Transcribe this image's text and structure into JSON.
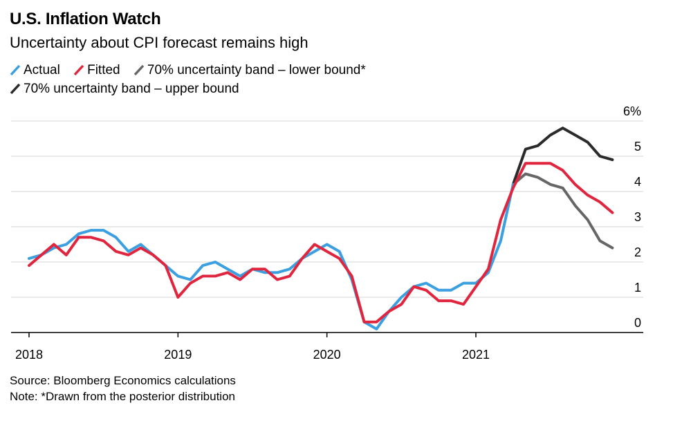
{
  "header": {
    "title": "U.S. Inflation Watch",
    "subtitle": "Uncertainty about CPI forecast remains high"
  },
  "legend": [
    {
      "label": "Actual",
      "color": "#3b9fe0"
    },
    {
      "label": "Fitted",
      "color": "#e0263f"
    },
    {
      "label": "70% uncertainty band – lower bound*",
      "color": "#666666"
    },
    {
      "label": "70% uncertainty band – upper bound",
      "color": "#2b2b2b"
    }
  ],
  "footer": {
    "source": "Source: Bloomberg Economics calculations",
    "note": "Note: *Drawn from the posterior distribution"
  },
  "chart_data": {
    "type": "line",
    "title": "U.S. Inflation Watch",
    "subtitle": "Uncertainty about CPI forecast remains high",
    "xlabel": "",
    "ylabel": "",
    "x_ticks": [
      "2018",
      "2019",
      "2020",
      "2021"
    ],
    "y_ticks": [
      {
        "value": 0,
        "label": "0"
      },
      {
        "value": 1,
        "label": "1"
      },
      {
        "value": 2,
        "label": "2"
      },
      {
        "value": 3,
        "label": "3"
      },
      {
        "value": 4,
        "label": "4"
      },
      {
        "value": 5,
        "label": "5"
      },
      {
        "value": 6,
        "label": "6%"
      }
    ],
    "ylim": [
      0,
      6
    ],
    "x_range": [
      "2018-01",
      "2022-04"
    ],
    "grid": "horizontal",
    "y_axis_side": "right",
    "series": [
      {
        "name": "Actual",
        "color": "#3b9fe0",
        "x": [
          "2018-01",
          "2018-02",
          "2018-03",
          "2018-04",
          "2018-05",
          "2018-06",
          "2018-07",
          "2018-08",
          "2018-09",
          "2018-10",
          "2018-11",
          "2018-12",
          "2019-01",
          "2019-02",
          "2019-03",
          "2019-04",
          "2019-05",
          "2019-06",
          "2019-07",
          "2019-08",
          "2019-09",
          "2019-10",
          "2019-11",
          "2019-12",
          "2020-01",
          "2020-02",
          "2020-03",
          "2020-04",
          "2020-05",
          "2020-06",
          "2020-07",
          "2020-08",
          "2020-09",
          "2020-10",
          "2020-11",
          "2020-12",
          "2021-01",
          "2021-02",
          "2021-03",
          "2021-04"
        ],
        "values": [
          2.1,
          2.2,
          2.4,
          2.5,
          2.8,
          2.9,
          2.9,
          2.7,
          2.3,
          2.5,
          2.2,
          1.9,
          1.6,
          1.5,
          1.9,
          2.0,
          1.8,
          1.6,
          1.8,
          1.7,
          1.7,
          1.8,
          2.1,
          2.3,
          2.5,
          2.3,
          1.5,
          0.3,
          0.1,
          0.6,
          1.0,
          1.3,
          1.4,
          1.2,
          1.2,
          1.4,
          1.4,
          1.7,
          2.6,
          4.2
        ]
      },
      {
        "name": "Fitted",
        "color": "#e0263f",
        "x": [
          "2018-01",
          "2018-02",
          "2018-03",
          "2018-04",
          "2018-05",
          "2018-06",
          "2018-07",
          "2018-08",
          "2018-09",
          "2018-10",
          "2018-11",
          "2018-12",
          "2019-01",
          "2019-02",
          "2019-03",
          "2019-04",
          "2019-05",
          "2019-06",
          "2019-07",
          "2019-08",
          "2019-09",
          "2019-10",
          "2019-11",
          "2019-12",
          "2020-01",
          "2020-02",
          "2020-03",
          "2020-04",
          "2020-05",
          "2020-06",
          "2020-07",
          "2020-08",
          "2020-09",
          "2020-10",
          "2020-11",
          "2020-12",
          "2021-01",
          "2021-02",
          "2021-03",
          "2021-04",
          "2021-05",
          "2021-06",
          "2021-07",
          "2021-08",
          "2021-09",
          "2021-10",
          "2021-11",
          "2021-12"
        ],
        "values": [
          1.9,
          2.2,
          2.5,
          2.2,
          2.7,
          2.7,
          2.6,
          2.3,
          2.2,
          2.4,
          2.2,
          1.9,
          1.0,
          1.4,
          1.6,
          1.6,
          1.7,
          1.5,
          1.8,
          1.8,
          1.5,
          1.6,
          2.1,
          2.5,
          2.3,
          2.1,
          1.6,
          0.3,
          0.3,
          0.6,
          0.8,
          1.3,
          1.2,
          0.9,
          0.9,
          0.8,
          1.3,
          1.8,
          3.2,
          4.1,
          4.8,
          4.8,
          4.8,
          4.6,
          4.2,
          3.9,
          3.7,
          3.4
        ]
      },
      {
        "name": "70% uncertainty band – lower bound*",
        "color": "#666666",
        "x": [
          "2021-04",
          "2021-05",
          "2021-06",
          "2021-07",
          "2021-08",
          "2021-09",
          "2021-10",
          "2021-11",
          "2021-12"
        ],
        "values": [
          4.2,
          4.5,
          4.4,
          4.2,
          4.1,
          3.6,
          3.2,
          2.6,
          2.4
        ]
      },
      {
        "name": "70% uncertainty band – upper bound",
        "color": "#2b2b2b",
        "x": [
          "2021-04",
          "2021-05",
          "2021-06",
          "2021-07",
          "2021-08",
          "2021-09",
          "2021-10",
          "2021-11",
          "2021-12"
        ],
        "values": [
          4.2,
          5.2,
          5.3,
          5.6,
          5.8,
          5.6,
          5.4,
          5.0,
          4.9
        ]
      }
    ]
  }
}
